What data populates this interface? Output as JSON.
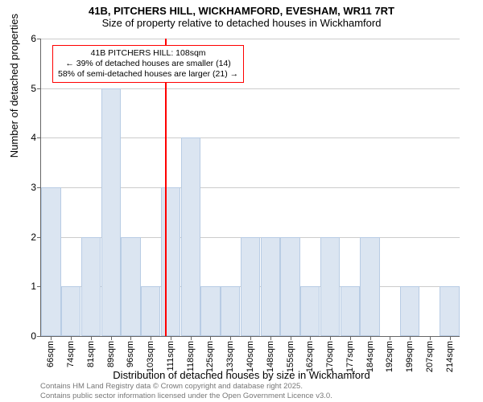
{
  "title_line1": "41B, PITCHERS HILL, WICKHAMFORD, EVESHAM, WR11 7RT",
  "title_line2": "Size of property relative to detached houses in Wickhamford",
  "ylabel": "Number of detached properties",
  "xlabel": "Distribution of detached houses by size in Wickhamford",
  "chart": {
    "type": "bar",
    "ylim": [
      0,
      6
    ],
    "ytick_step": 1,
    "ytick_labels": [
      "0",
      "1",
      "2",
      "3",
      "4",
      "5",
      "6"
    ],
    "grid_color": "#cccccc",
    "axis_color": "#666666",
    "bar_fill": "#dbe5f1",
    "bar_border": "#b8cce4",
    "background": "#ffffff",
    "marker_color": "#ff0000",
    "marker_x": 108,
    "x_start": 62,
    "x_bin": 7.4,
    "categories": [
      "66sqm",
      "74sqm",
      "81sqm",
      "89sqm",
      "96sqm",
      "103sqm",
      "111sqm",
      "118sqm",
      "125sqm",
      "133sqm",
      "140sqm",
      "148sqm",
      "155sqm",
      "162sqm",
      "170sqm",
      "177sqm",
      "184sqm",
      "192sqm",
      "199sqm",
      "207sqm",
      "214sqm"
    ],
    "values": [
      3,
      1,
      2,
      5,
      2,
      1,
      3,
      4,
      1,
      1,
      2,
      2,
      2,
      1,
      2,
      1,
      2,
      0,
      1,
      0,
      1
    ],
    "bar_width_ratio": 0.98,
    "label_fontsize": 11,
    "tick_fontsize": 12
  },
  "annotation": {
    "line1": "41B PITCHERS HILL: 108sqm",
    "line2": "← 39% of detached houses are smaller (14)",
    "line3": "58% of semi-detached houses are larger (21) →",
    "border_color": "#ff0000",
    "background": "#ffffff",
    "fontsize": 10.5
  },
  "attribution": {
    "line1": "Contains HM Land Registry data © Crown copyright and database right 2025.",
    "line2": "Contains public sector information licensed under the Open Government Licence v3.0.",
    "color": "#777777"
  }
}
